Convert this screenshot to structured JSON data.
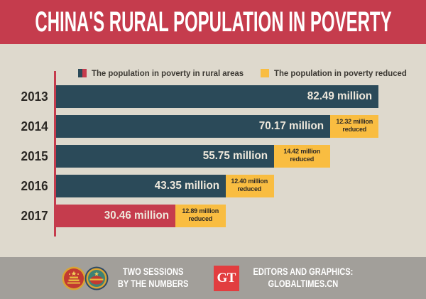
{
  "title": "CHINA'S RURAL POPULATION IN POVERTY",
  "legend": {
    "items": [
      {
        "label": "The population in poverty in rural areas",
        "swatch": "split-teal-red"
      },
      {
        "label": "The population in poverty reduced",
        "swatch": "yellow"
      }
    ]
  },
  "chart_data": {
    "type": "bar",
    "orientation": "horizontal",
    "title": "CHINA'S RURAL POPULATION IN POVERTY",
    "categories": [
      "2013",
      "2014",
      "2015",
      "2016",
      "2017"
    ],
    "series": [
      {
        "name": "The population in poverty in rural areas",
        "values": [
          82.49,
          70.17,
          55.75,
          43.35,
          30.46
        ]
      },
      {
        "name": "The population in poverty reduced",
        "values": [
          null,
          12.32,
          14.42,
          12.4,
          12.89
        ]
      }
    ],
    "unit": "million",
    "xlim": [
      0,
      82.49
    ],
    "legend_position": "top",
    "grid": false
  },
  "rows": [
    {
      "year": "2013",
      "value": 82.49,
      "value_label": "82.49 million",
      "reduced": null,
      "reduced_line1": "",
      "reduced_line2": "",
      "highlight": false
    },
    {
      "year": "2014",
      "value": 70.17,
      "value_label": "70.17 million",
      "reduced": 12.32,
      "reduced_line1": "12.32 million",
      "reduced_line2": "reduced",
      "highlight": false
    },
    {
      "year": "2015",
      "value": 55.75,
      "value_label": "55.75 million",
      "reduced": 14.42,
      "reduced_line1": "14.42 million",
      "reduced_line2": "reduced",
      "highlight": false
    },
    {
      "year": "2016",
      "value": 43.35,
      "value_label": "43.35 million",
      "reduced": 12.4,
      "reduced_line1": "12.40 million",
      "reduced_line2": "reduced",
      "highlight": false
    },
    {
      "year": "2017",
      "value": 30.46,
      "value_label": "30.46 million",
      "reduced": 12.89,
      "reduced_line1": "12.89 million",
      "reduced_line2": "reduced",
      "highlight": true
    }
  ],
  "footer": {
    "campaign_line1": "TWO SESSIONS",
    "campaign_line2": "BY THE NUMBERS",
    "gt_monogram": "GT",
    "credit_line1": "EDITORS AND GRAPHICS:",
    "credit_line2": "GLOBALTIMES.CN"
  },
  "colors": {
    "header_red": "#c53c4d",
    "bar_teal": "#2b4a59",
    "bar_red": "#c53c4d",
    "reduced_yellow": "#f9bd41",
    "background_beige": "#ded9cd",
    "footer_gray": "#a29f9a",
    "gt_red": "#e23d3f"
  }
}
